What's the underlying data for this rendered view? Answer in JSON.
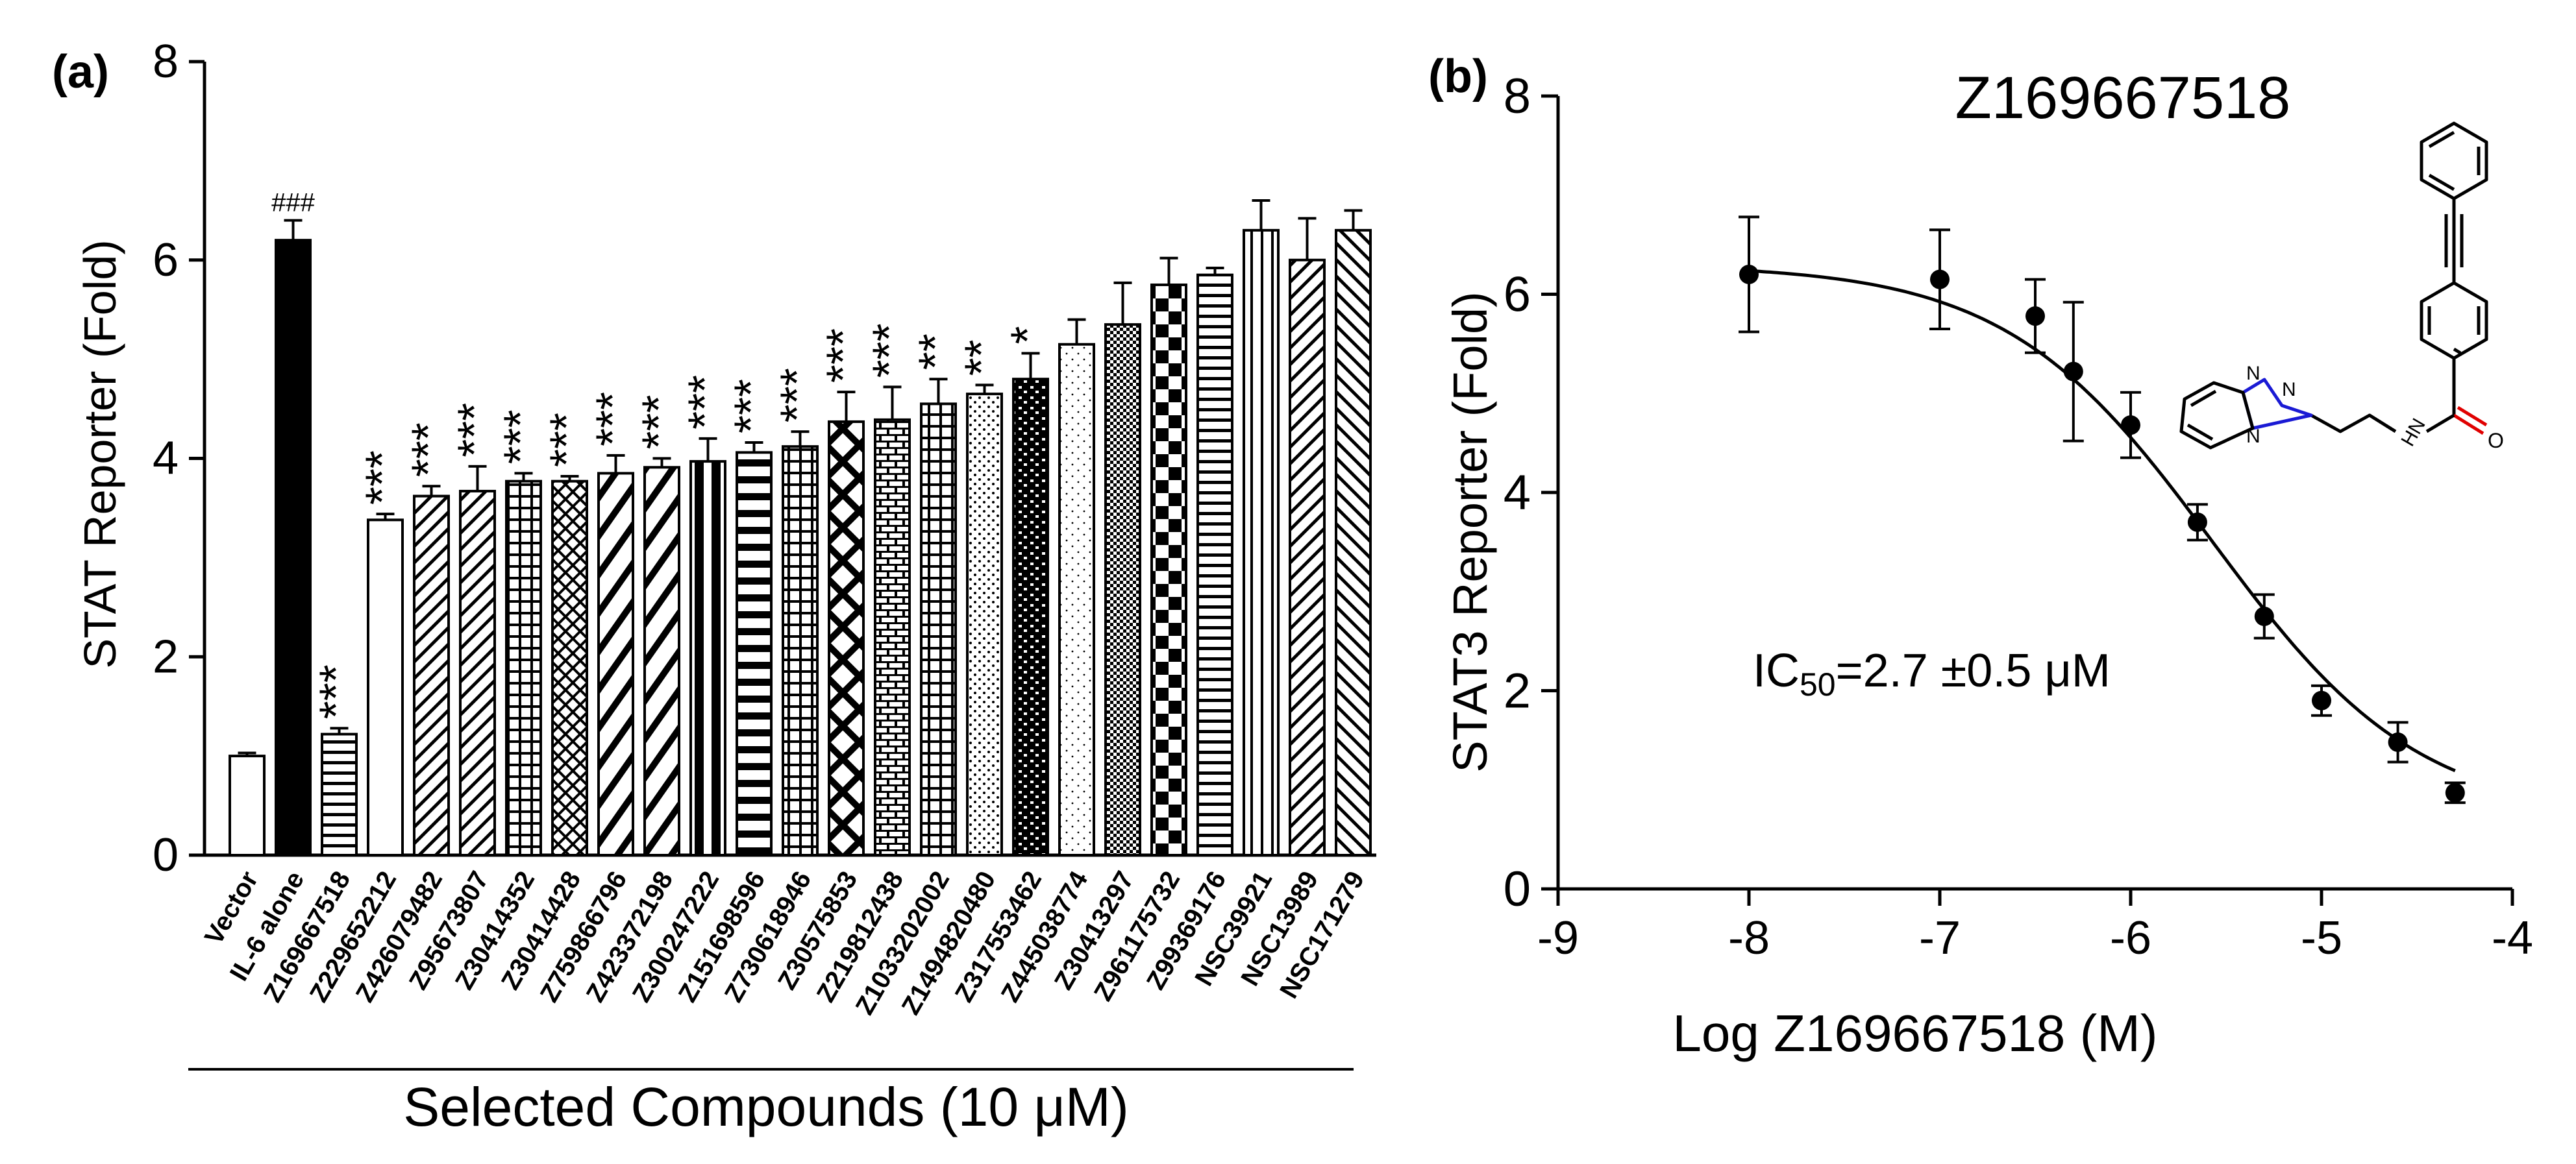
{
  "panel_a": {
    "label": "(a)",
    "ylabel": "STAT Reporter (Fold)",
    "group_label": "Selected Compounds (10 μM)"
  },
  "panel_b": {
    "label": "(b)",
    "title": "Z169667518",
    "ylabel": "STAT3 Reporter (Fold)",
    "xlabel": "Log Z169667518 (M)",
    "ic50_text": "IC50 = 2.7 ± 0.5 μM",
    "ic50_prefix": "IC",
    "ic50_sub": "50",
    "ic50_value": "=2.7 ±0.5 μM"
  },
  "chart_data": [
    {
      "type": "bar",
      "title": "",
      "xlabel": "Selected Compounds (10 μM)",
      "ylabel": "STAT Reporter (Fold)",
      "ylim": [
        0,
        8
      ],
      "yticks": [
        "0",
        "2",
        "4",
        "6",
        "8"
      ],
      "categories": [
        "Vector",
        "IL-6 alone",
        "Z169667518",
        "Z229652212",
        "Z426079482",
        "Z95673807",
        "Z30414352",
        "Z30414428",
        "Z759866796",
        "Z423372198",
        "Z300247222",
        "Z151698596",
        "Z730618946",
        "Z30575853",
        "Z219812438",
        "Z1033202002",
        "Z1494820480",
        "Z317553462",
        "Z445038774",
        "Z30413297",
        "Z961175732",
        "Z99369176",
        "NSC39921",
        "NSC13989",
        "NSC171279"
      ],
      "values": [
        1.0,
        6.2,
        1.22,
        3.38,
        3.62,
        3.67,
        3.77,
        3.77,
        3.85,
        3.91,
        3.97,
        4.06,
        4.12,
        4.37,
        4.39,
        4.55,
        4.65,
        4.8,
        5.15,
        5.35,
        5.75,
        5.85,
        6.3,
        6.0,
        6.3
      ],
      "errors": [
        0.03,
        0.2,
        0.06,
        0.06,
        0.1,
        0.25,
        0.08,
        0.05,
        0.18,
        0.09,
        0.23,
        0.1,
        0.15,
        0.3,
        0.33,
        0.25,
        0.09,
        0.26,
        0.25,
        0.42,
        0.27,
        0.07,
        0.3,
        0.42,
        0.2
      ],
      "annotations": [
        "",
        "###",
        "***",
        "***",
        "***",
        "***",
        "***",
        "***",
        "***",
        "***",
        "***",
        "***",
        "***",
        "***",
        "***",
        "**",
        "**",
        "*",
        "",
        "",
        "",
        "",
        "",
        "",
        ""
      ],
      "patterns": [
        "white",
        "black",
        "hlines",
        "white",
        "diag",
        "diag",
        "grid",
        "crosshatch",
        "diagbig",
        "diagbig",
        "vstripes",
        "hlinesthick",
        "grid",
        "diamond",
        "brick",
        "grid",
        "dots",
        "brickdark",
        "dotsfine",
        "checkfine",
        "check",
        "hlines",
        "vlines",
        "diag",
        "diagrev"
      ]
    },
    {
      "type": "scatter",
      "title": "Z169667518",
      "xlabel": "Log Z169667518 (M)",
      "ylabel": "STAT3 Reporter (Fold)",
      "xlim": [
        -9,
        -4
      ],
      "ylim": [
        0,
        8
      ],
      "xticks": [
        "-9",
        "-8",
        "-7",
        "-6",
        "-5",
        "-4"
      ],
      "yticks": [
        "0",
        "2",
        "4",
        "6",
        "8"
      ],
      "x": [
        -8,
        -7,
        -6.5,
        -6.3,
        -6,
        -5.65,
        -5.3,
        -5,
        -4.6,
        -4.3
      ],
      "y": [
        6.2,
        6.15,
        5.78,
        5.22,
        4.68,
        3.7,
        2.75,
        1.9,
        1.48,
        0.97
      ],
      "yerr": [
        0.58,
        0.5,
        0.37,
        0.7,
        0.33,
        0.18,
        0.22,
        0.15,
        0.2,
        0.1
      ],
      "fit": {
        "model": "sigmoidal dose-response",
        "top": 6.3,
        "bottom": 0.7,
        "logIC50": -5.57,
        "hill": 0.8
      },
      "ic50": "2.7 ± 0.5 μM"
    }
  ]
}
